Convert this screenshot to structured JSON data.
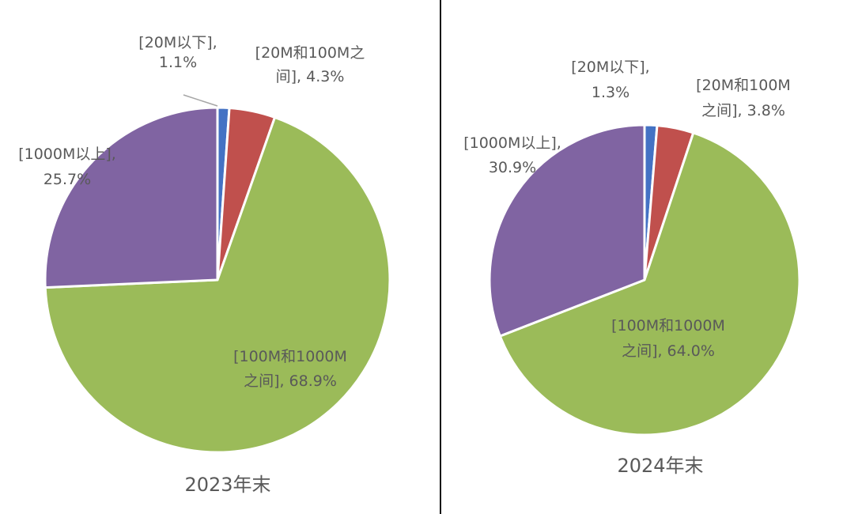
{
  "chart_data": [
    {
      "type": "pie",
      "caption": "2023年末",
      "slices": [
        {
          "name": "20M以下",
          "value": 1.1,
          "color": "#4472c4",
          "label_lines": [
            "[20M以下],",
            "1.1%"
          ]
        },
        {
          "name": "20M和100M之间",
          "value": 4.3,
          "color": "#c0504d",
          "label_lines": [
            "[20M和100M之",
            "间], 4.3%"
          ]
        },
        {
          "name": "100M和1000M之间",
          "value": 68.9,
          "color": "#9bbb59",
          "label_lines": [
            "[100M和1000M",
            "之间], 68.9%"
          ]
        },
        {
          "name": "1000M以上",
          "value": 25.7,
          "color": "#8064a2",
          "label_lines": [
            "[1000M以上],",
            "25.7%"
          ]
        }
      ]
    },
    {
      "type": "pie",
      "caption": "2024年末",
      "slices": [
        {
          "name": "20M以下",
          "value": 1.3,
          "color": "#4472c4",
          "label_lines": [
            "[20M以下],",
            "1.3%"
          ]
        },
        {
          "name": "20M和100M之间",
          "value": 3.8,
          "color": "#c0504d",
          "label_lines": [
            "[20M和100M",
            "之间], 3.8%"
          ]
        },
        {
          "name": "100M和1000M之间",
          "value": 64.0,
          "color": "#9bbb59",
          "label_lines": [
            "[100M和1000M",
            "之间], 64.0%"
          ]
        },
        {
          "name": "1000M以上",
          "value": 30.9,
          "color": "#8064a2",
          "label_lines": [
            "[1000M以上],",
            "30.9%"
          ]
        }
      ]
    }
  ]
}
